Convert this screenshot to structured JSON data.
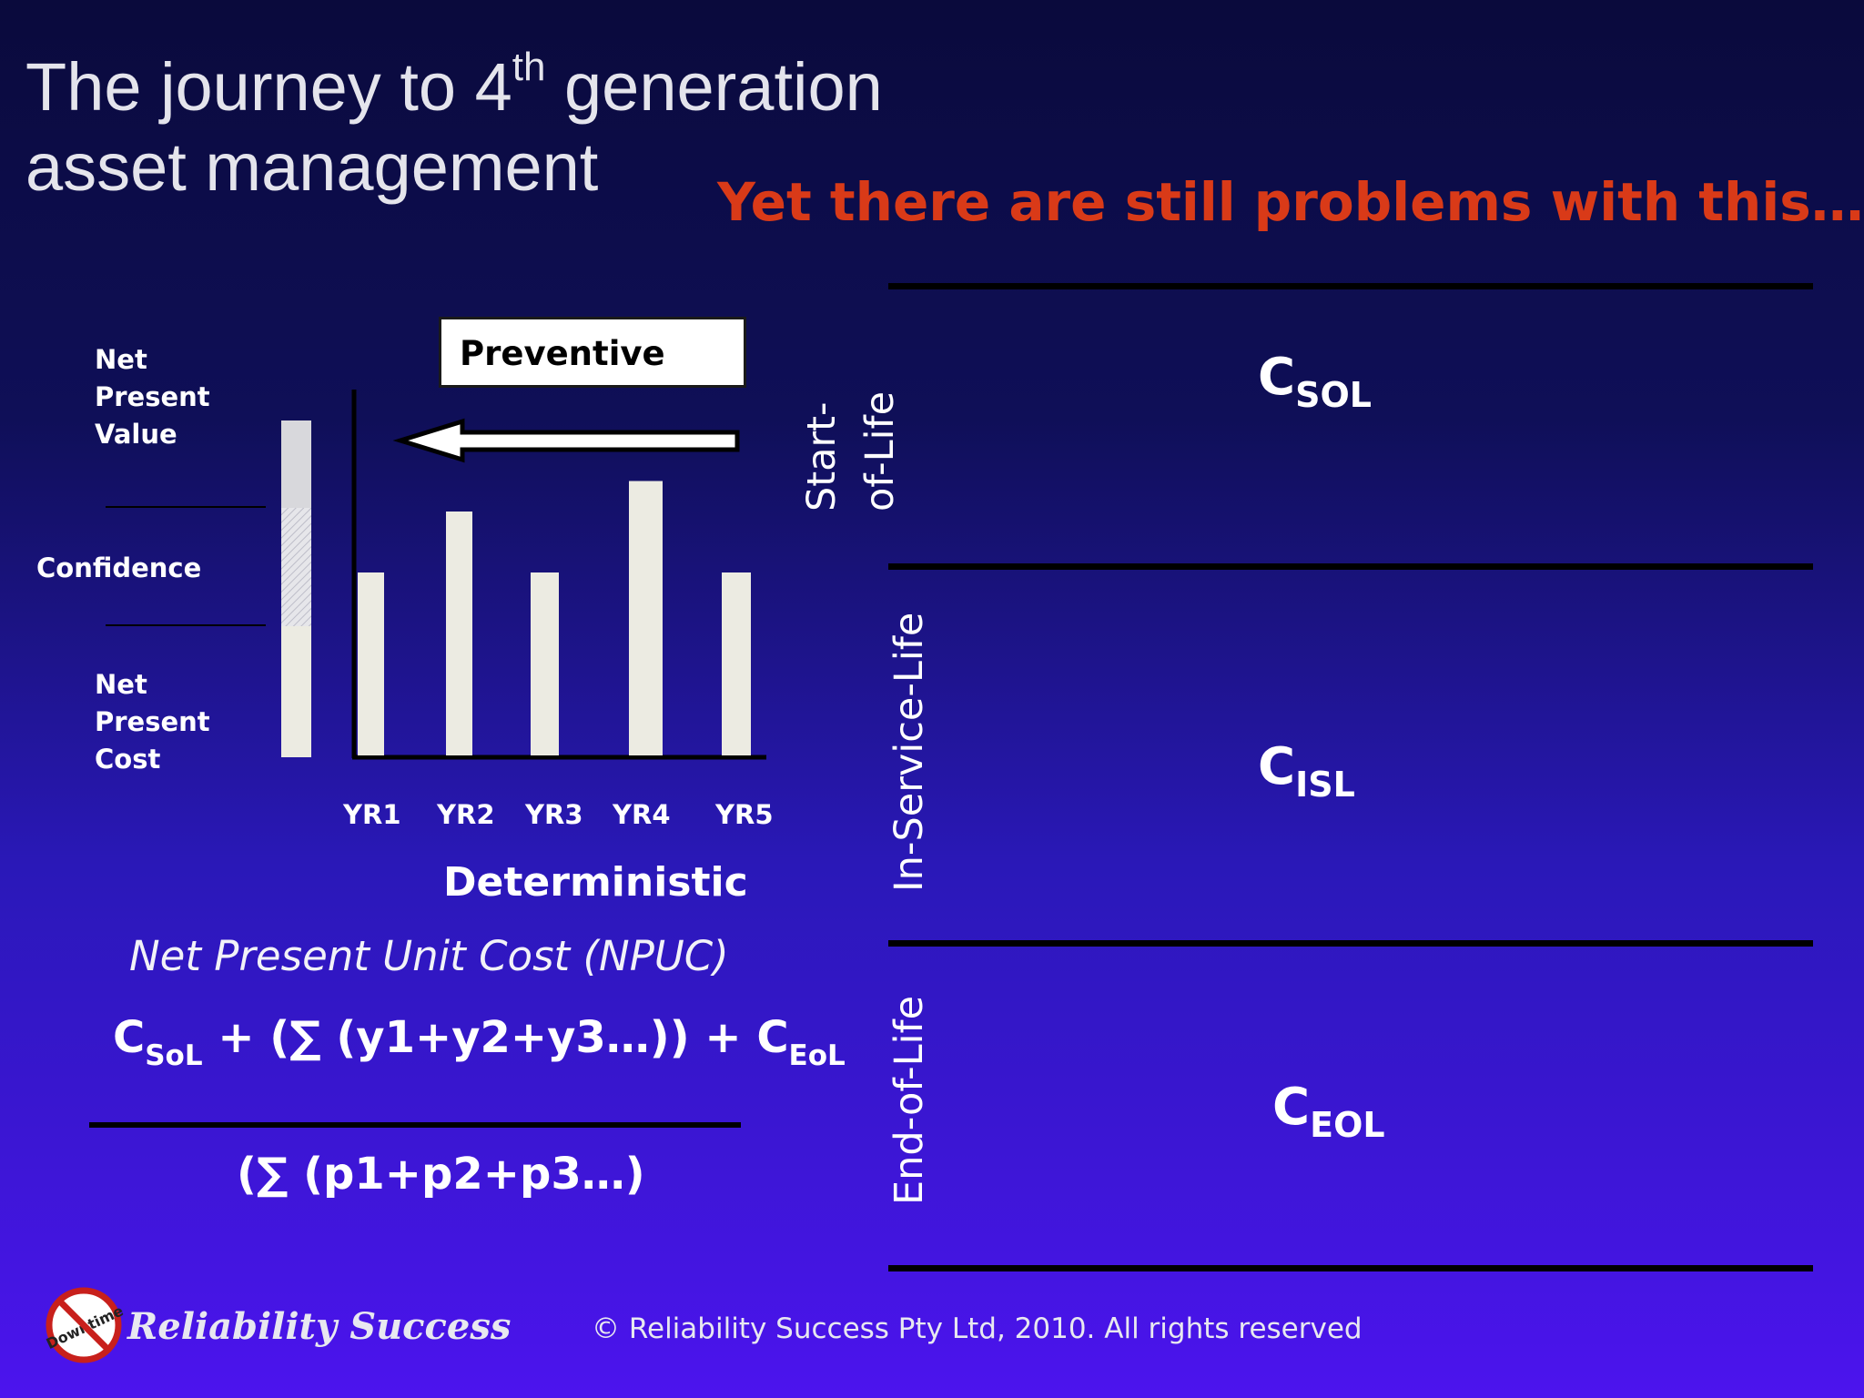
{
  "slide": {
    "title_line1_a": "The journey to 4",
    "title_line1_sup": "th",
    "title_line1_b": " generation",
    "title_line2": "asset management",
    "subtitle": "Yet there are still problems with this…"
  },
  "chart": {
    "box_label": "Preventive",
    "npv_label": [
      "Net",
      "Present",
      "Value"
    ],
    "confidence_label": "Confidence",
    "npc_label": [
      "Net",
      "Present",
      "Cost"
    ],
    "x_caption": "Deterministic"
  },
  "chart_data": {
    "type": "bar",
    "categories": [
      "YR1",
      "YR2",
      "YR3",
      "YR4",
      "YR5"
    ],
    "values": [
      3,
      4,
      3,
      4.5,
      3
    ],
    "ylim": [
      0,
      6
    ],
    "xlabel": "Deterministic",
    "grid": false
  },
  "formula": {
    "caption": "Net Present Unit Cost (NPUC)",
    "num_c1": "C",
    "num_c1_sub": "SoL",
    "num_mid": " + (∑ (y1+y2+y3…)) + C",
    "num_c2_sub": "EoL",
    "denominator": "(∑ (p1+p2+p3…)"
  },
  "lifecycle": {
    "start_line1": "Start-",
    "start_line2": "of-Life",
    "inservice": "In-Service-Life",
    "endoflife": "End-of-Life",
    "c_sol": "C",
    "c_sol_sub": "SOL",
    "c_isl": "C",
    "c_isl_sub": "ISL",
    "c_eol": "C",
    "c_eol_sub": "EOL"
  },
  "footer": {
    "logo_text": "Reliability Success",
    "logo_badge": "Downtime",
    "copyright": "© Reliability Success Pty  Ltd, 2010. All rights reserved"
  },
  "colors": {
    "accent": "#d93a18",
    "bar": "#ecebe2"
  }
}
